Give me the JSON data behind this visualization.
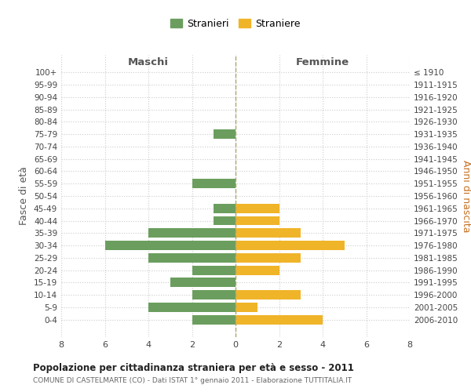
{
  "age_groups": [
    "100+",
    "95-99",
    "90-94",
    "85-89",
    "80-84",
    "75-79",
    "70-74",
    "65-69",
    "60-64",
    "55-59",
    "50-54",
    "45-49",
    "40-44",
    "35-39",
    "30-34",
    "25-29",
    "20-24",
    "15-19",
    "10-14",
    "5-9",
    "0-4"
  ],
  "birth_years": [
    "≤ 1910",
    "1911-1915",
    "1916-1920",
    "1921-1925",
    "1926-1930",
    "1931-1935",
    "1936-1940",
    "1941-1945",
    "1946-1950",
    "1951-1955",
    "1956-1960",
    "1961-1965",
    "1966-1970",
    "1971-1975",
    "1976-1980",
    "1981-1985",
    "1986-1990",
    "1991-1995",
    "1996-2000",
    "2001-2005",
    "2006-2010"
  ],
  "maschi": [
    0,
    0,
    0,
    0,
    0,
    1,
    0,
    0,
    0,
    2,
    0,
    1,
    1,
    4,
    6,
    4,
    2,
    3,
    2,
    4,
    2
  ],
  "femmine": [
    0,
    0,
    0,
    0,
    0,
    0,
    0,
    0,
    0,
    0,
    0,
    2,
    2,
    3,
    5,
    3,
    2,
    0,
    3,
    1,
    4
  ],
  "color_maschi": "#6b9e5e",
  "color_femmine": "#f0b429",
  "xlabel_left": "Maschi",
  "xlabel_right": "Femmine",
  "ylabel_left": "Fasce di età",
  "ylabel_right": "Anni di nascita",
  "title": "Popolazione per cittadinanza straniera per età e sesso - 2011",
  "subtitle": "COMUNE DI CASTELMARTE (CO) - Dati ISTAT 1° gennaio 2011 - Elaborazione TUTTITALIA.IT",
  "legend_maschi": "Stranieri",
  "legend_femmine": "Straniere",
  "xlim": 8,
  "background_color": "#ffffff",
  "grid_color": "#cccccc",
  "right_ylabel_color": "#c87020"
}
